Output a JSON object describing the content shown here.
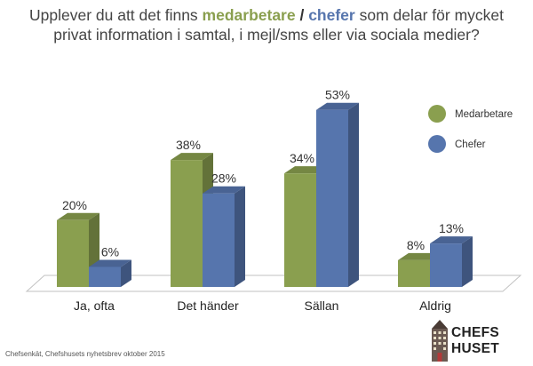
{
  "title": {
    "part1": "Upplever du att det finns ",
    "highlight1": "medarbetare",
    "sep": " / ",
    "highlight2": "chefer",
    "part2": " som delar för mycket privat information i samtal, i mejl/sms eller via sociala medier?"
  },
  "source": "Chefsenkät, Chefshusets nyhetsbrev oktober 2015",
  "logo": {
    "line1": "CHEFS",
    "line2": "HUSET"
  },
  "colors": {
    "medarbetare": "#8a9f4f",
    "chefer": "#5675ad"
  },
  "chart_data": {
    "type": "bar",
    "categories": [
      "Ja, ofta",
      "Det händer",
      "Sällan",
      "Aldrig"
    ],
    "series": [
      {
        "name": "Medarbetare",
        "values": [
          20,
          38,
          34,
          8
        ],
        "labels": [
          "20%",
          "38%",
          "34%",
          "8%"
        ]
      },
      {
        "name": "Chefer",
        "values": [
          6,
          28,
          53,
          13
        ],
        "labels": [
          "6%",
          "28%",
          "53%",
          "13%"
        ]
      }
    ],
    "legend": "right",
    "ylim": [
      0,
      55
    ],
    "grid": false
  }
}
